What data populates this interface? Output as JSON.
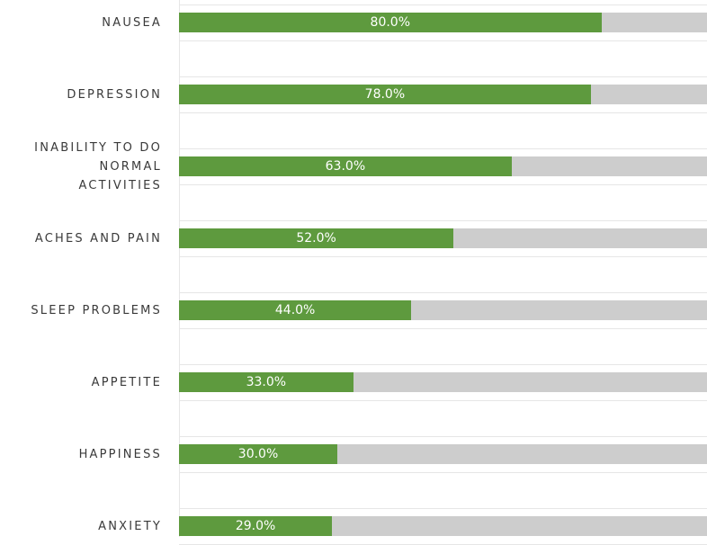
{
  "chart_data": {
    "type": "bar",
    "orientation": "horizontal",
    "categories": [
      [
        "NAUSEA"
      ],
      [
        "DEPRESSION"
      ],
      [
        "INABILITY TO DO",
        "NORMAL",
        "ACTIVITIES"
      ],
      [
        "ACHES AND PAIN"
      ],
      [
        "SLEEP PROBLEMS"
      ],
      [
        "APPETITE"
      ],
      [
        "HAPPINESS"
      ],
      [
        "ANXIETY"
      ]
    ],
    "values": [
      80.0,
      78.0,
      63.0,
      52.0,
      44.0,
      33.0,
      30.0,
      29.0
    ],
    "value_labels": [
      "80.0%",
      "78.0%",
      "63.0%",
      "52.0%",
      "44.0%",
      "33.0%",
      "30.0%",
      "29.0%"
    ],
    "xlim": [
      0,
      100
    ],
    "title": "",
    "xlabel": "",
    "ylabel": "",
    "grid": true,
    "legend": "none",
    "colors": {
      "bar": "#5e9a3e",
      "track": "#cdcdcd",
      "label_text": "#ffffff",
      "category_text": "#3a3a3a"
    }
  }
}
